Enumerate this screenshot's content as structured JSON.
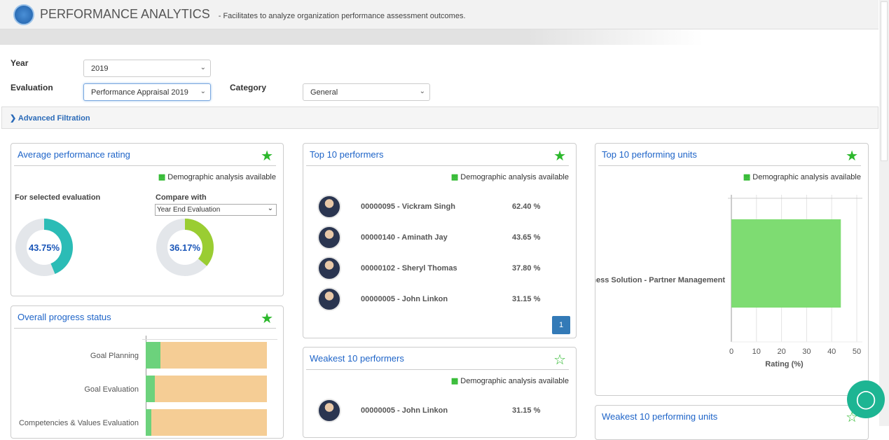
{
  "header": {
    "title": "PERFORMANCE ANALYTICS",
    "subtitle": "- Facilitates to analyze organization performance assessment outcomes."
  },
  "filters": {
    "year_label": "Year",
    "year_value": "2019",
    "evaluation_label": "Evaluation",
    "evaluation_value": "Performance Appraisal 2019",
    "category_label": "Category",
    "category_value": "General"
  },
  "advanced": {
    "label": "Advanced Filtration"
  },
  "demo_text": "Demographic analysis available",
  "avg": {
    "title": "Average performance rating",
    "selected_label": "For selected evaluation",
    "compare_label": "Compare with",
    "compare_value": "Year End Evaluation",
    "selected_pct": "43.75%",
    "compare_pct": "36.17%",
    "selected_value": 43.75,
    "compare_value_num": 36.17,
    "colors": {
      "selected": "#2bbcb6",
      "compare": "#9acd32",
      "track": "#e3e6ea"
    }
  },
  "progress": {
    "title": "Overall progress status",
    "categories": [
      "Goal Planning",
      "Goal Evaluation",
      "Competencies & Values Evaluation"
    ],
    "completed": [
      4,
      2.5,
      1.5
    ],
    "colors": {
      "completed": "#6cd27c",
      "pending": "#f5cd95"
    }
  },
  "top": {
    "title": "Top 10 performers",
    "rows": [
      {
        "name": "00000095 - Vickram Singh",
        "pct": "62.40 %"
      },
      {
        "name": "00000140 - Aminath Jay",
        "pct": "43.65 %"
      },
      {
        "name": "00000102 - Sheryl Thomas",
        "pct": "37.80 %"
      },
      {
        "name": "00000005 - John Linkon",
        "pct": "31.15 %"
      }
    ],
    "page": "1"
  },
  "weak": {
    "title": "Weakest 10 performers",
    "rows": [
      {
        "name": "00000005 - John Linkon",
        "pct": "31.15 %"
      }
    ]
  },
  "units": {
    "title": "Top 10 performing units"
  },
  "weak_units": {
    "title": "Weakest 10 performing units"
  },
  "chart_data": {
    "type": "bar",
    "orientation": "horizontal",
    "categories": [
      "ness Solution - Partner Management"
    ],
    "values": [
      43.65
    ],
    "xlabel": "Rating (%)",
    "xlim": [
      0,
      50
    ],
    "ticks": [
      "0",
      "10",
      "20",
      "30",
      "40",
      "50"
    ],
    "grid": true,
    "color": "#7edc72"
  }
}
